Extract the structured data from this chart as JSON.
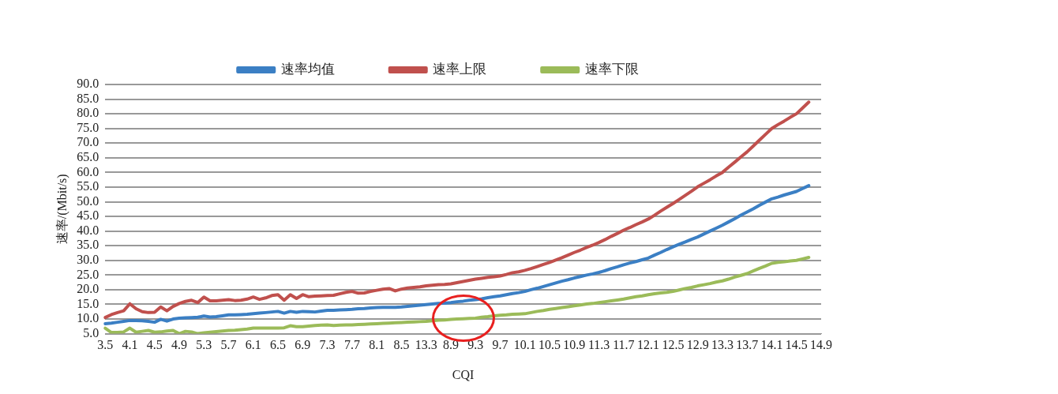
{
  "chart_data": {
    "type": "line",
    "xlabel": "CQI",
    "ylabel": "速率/(Mbit/s)",
    "categories": [
      "3.5",
      null,
      null,
      null,
      "4.1",
      null,
      null,
      null,
      "4.5",
      null,
      null,
      null,
      "4.9",
      null,
      null,
      null,
      "5.3",
      null,
      null,
      null,
      "5.7",
      null,
      null,
      null,
      "6.1",
      null,
      null,
      null,
      "6.5",
      null,
      null,
      null,
      "6.9",
      null,
      null,
      null,
      "7.3",
      null,
      null,
      null,
      "7.7",
      null,
      null,
      null,
      "8.1",
      null,
      null,
      null,
      "8.5",
      null,
      null,
      null,
      "13.3",
      null,
      null,
      null,
      "8.9",
      null,
      null,
      null,
      "9.3",
      null,
      null,
      null,
      "9.7",
      null,
      null,
      null,
      "10.1",
      null,
      null,
      null,
      "10.5",
      null,
      null,
      null,
      "10.9",
      null,
      null,
      null,
      "11.3",
      null,
      null,
      null,
      "11.7",
      null,
      null,
      null,
      "12.1",
      null,
      null,
      null,
      "12.5",
      null,
      null,
      null,
      "12.9",
      null,
      null,
      null,
      "13.3",
      null,
      null,
      null,
      "13.7",
      null,
      null,
      null,
      "14.1",
      null,
      null,
      null,
      "14.5",
      null,
      null,
      null,
      "14.9"
    ],
    "series": [
      {
        "name": "速率均值",
        "color": "#3b7fc4",
        "values": [
          8.4,
          8.6,
          8.9,
          9.2,
          9.5,
          9.5,
          9.4,
          9.2,
          8.9,
          9.9,
          9.3,
          10,
          10.3,
          10.4,
          10.5,
          10.6,
          11,
          10.7,
          10.8,
          11.1,
          11.4,
          11.4,
          11.5,
          11.6,
          11.8,
          12,
          12.2,
          12.4,
          12.6,
          12,
          12.6,
          12.3,
          12.6,
          12.5,
          12.4,
          12.7,
          13,
          13,
          13.1,
          13.2,
          13.3,
          13.5,
          13.6,
          13.8,
          13.9,
          14,
          14,
          14,
          14.1,
          14.3,
          14.5,
          14.7,
          14.9,
          15.1,
          15.3,
          15.4,
          15.6,
          15.9,
          16.1,
          16.4,
          16.6,
          16.9,
          17.3,
          17.6,
          17.9,
          18.3,
          18.7,
          19,
          19.4,
          20,
          20.5,
          21.1,
          21.7,
          22.3,
          22.9,
          23.4,
          24,
          24.5,
          25,
          25.4,
          25.9,
          26.5,
          27.2,
          27.8,
          28.5,
          29.1,
          29.6,
          30.2,
          30.8,
          31.8,
          32.7,
          33.7,
          34.6,
          35.5,
          36.3,
          37.2,
          38,
          39,
          40,
          41,
          42,
          43.1,
          44.2,
          45.4,
          46.5,
          47.6,
          48.8,
          49.9,
          51,
          51.6,
          52.3,
          52.9,
          53.5,
          54.5,
          55.5,
          null,
          null
        ]
      },
      {
        "name": "速率上限",
        "color": "#c0504d",
        "values": [
          10.5,
          11.5,
          12.2,
          12.8,
          15.2,
          13.5,
          12.5,
          12.2,
          12.3,
          14.1,
          12.8,
          14.3,
          15.3,
          16,
          16.4,
          15.6,
          17.5,
          16.2,
          16.2,
          16.4,
          16.6,
          16.3,
          16.4,
          16.8,
          17.5,
          16.7,
          17.2,
          18,
          18.3,
          16.4,
          18.3,
          17,
          18.3,
          17.6,
          17.8,
          17.9,
          18,
          18.1,
          18.6,
          19.1,
          19.4,
          18.8,
          18.9,
          19.4,
          19.8,
          20.2,
          20.4,
          19.6,
          20.2,
          20.6,
          20.8,
          21,
          21.3,
          21.5,
          21.7,
          21.8,
          22,
          22.4,
          22.8,
          23.2,
          23.6,
          23.9,
          24.2,
          24.4,
          24.7,
          25.2,
          25.8,
          26.1,
          26.6,
          27.2,
          27.9,
          28.6,
          29.3,
          30.1,
          30.9,
          31.8,
          32.7,
          33.5,
          34.4,
          35.2,
          36.1,
          37.1,
          38.2,
          39.2,
          40.3,
          41.2,
          42.2,
          43.1,
          44.1,
          45.4,
          46.8,
          48.1,
          49.4,
          50.8,
          52.2,
          53.6,
          55.1,
          56.3,
          57.5,
          58.8,
          60,
          61.8,
          63.5,
          65.3,
          67,
          69,
          71,
          73,
          75,
          76.3,
          77.5,
          78.8,
          80,
          82,
          84,
          null,
          null
        ]
      },
      {
        "name": "速率下限",
        "color": "#9bbb59",
        "values": [
          6.9,
          5.4,
          5.4,
          5.6,
          6.9,
          5.5,
          5.8,
          6.1,
          5.5,
          5.6,
          5.9,
          6.1,
          5,
          5.8,
          5.6,
          5,
          5.3,
          5.5,
          5.7,
          5.9,
          6.1,
          6.2,
          6.4,
          6.6,
          6.9,
          6.9,
          6.9,
          6.9,
          6.9,
          7,
          7.7,
          7.4,
          7.4,
          7.6,
          7.8,
          7.9,
          8,
          7.8,
          7.9,
          8,
          8,
          8.1,
          8.2,
          8.3,
          8.4,
          8.5,
          8.6,
          8.7,
          8.8,
          8.9,
          9,
          9.1,
          9.2,
          9.4,
          9.6,
          9.7,
          9.9,
          10,
          10.1,
          10.2,
          10.3,
          10.6,
          10.8,
          11.1,
          11.3,
          11.4,
          11.6,
          11.7,
          11.8,
          12.2,
          12.6,
          12.9,
          13.3,
          13.6,
          13.9,
          14.2,
          14.5,
          14.8,
          15.1,
          15.3,
          15.6,
          15.9,
          16.2,
          16.5,
          16.8,
          17.2,
          17.6,
          17.9,
          18.3,
          18.6,
          18.9,
          19.1,
          19.4,
          19.9,
          20.4,
          20.8,
          21.3,
          21.7,
          22.1,
          22.6,
          23,
          23.6,
          24.3,
          24.9,
          25.5,
          26.4,
          27.3,
          28.1,
          29,
          29.3,
          29.5,
          29.8,
          30,
          30.5,
          31,
          null,
          null
        ]
      }
    ],
    "ylim": [
      5,
      90
    ],
    "yticks": [
      {
        "value": 5,
        "label": "5.0"
      },
      {
        "value": 10,
        "label": "10.0"
      },
      {
        "value": 15,
        "label": "15.0"
      },
      {
        "value": 20,
        "label": "20.0"
      },
      {
        "value": 25,
        "label": "25.0"
      },
      {
        "value": 30,
        "label": "30.0"
      },
      {
        "value": 35,
        "label": "35.0"
      },
      {
        "value": 40,
        "label": "40.0"
      },
      {
        "value": 45,
        "label": "45.0"
      },
      {
        "value": 50,
        "label": "50.0"
      },
      {
        "value": 55,
        "label": "55.0"
      },
      {
        "value": 60,
        "label": "60.0"
      },
      {
        "value": 65,
        "label": "65.0"
      },
      {
        "value": 70,
        "label": "70.0"
      },
      {
        "value": 75,
        "label": "75.0"
      },
      {
        "value": 80,
        "label": "80.0"
      },
      {
        "value": 85,
        "label": "85.0"
      },
      {
        "value": 90,
        "label": "90.0"
      }
    ],
    "grid": "y",
    "legend": "top",
    "marker": "none",
    "line_style": "solid"
  }
}
